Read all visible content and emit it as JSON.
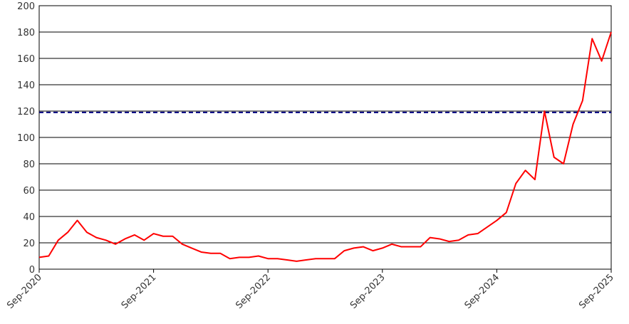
{
  "chart_data": {
    "type": "line",
    "x": [
      "2020-09",
      "2020-10",
      "2020-11",
      "2020-12",
      "2021-01",
      "2021-02",
      "2021-03",
      "2021-04",
      "2021-05",
      "2021-06",
      "2021-07",
      "2021-08",
      "2021-09",
      "2021-10",
      "2021-11",
      "2021-12",
      "2022-01",
      "2022-02",
      "2022-03",
      "2022-04",
      "2022-05",
      "2022-06",
      "2022-07",
      "2022-08",
      "2022-09",
      "2022-10",
      "2022-11",
      "2022-12",
      "2023-01",
      "2023-02",
      "2023-03",
      "2023-04",
      "2023-05",
      "2023-06",
      "2023-07",
      "2023-08",
      "2023-09",
      "2023-10",
      "2023-11",
      "2023-12",
      "2024-01",
      "2024-02",
      "2024-03",
      "2024-04",
      "2024-05",
      "2024-06",
      "2024-07",
      "2024-08",
      "2024-09",
      "2024-10",
      "2024-11",
      "2024-12",
      "2025-01",
      "2025-02",
      "2025-03",
      "2025-04",
      "2025-05",
      "2025-06",
      "2025-07",
      "2025-08",
      "2025-09"
    ],
    "series": [
      {
        "color": "#ff0000",
        "values": [
          9,
          10,
          22,
          28,
          37,
          28,
          24,
          22,
          19,
          23,
          26,
          22,
          27,
          25,
          25,
          19,
          16,
          13,
          12,
          12,
          8,
          9,
          9,
          10,
          8,
          8,
          7,
          6,
          7,
          8,
          8,
          8,
          14,
          16,
          17,
          14,
          16,
          19,
          17,
          17,
          17,
          24,
          23,
          21,
          22,
          26,
          27,
          32,
          37,
          43,
          65,
          75,
          68,
          120,
          85,
          80,
          110,
          128,
          175,
          158,
          180
        ]
      }
    ],
    "reference_line": {
      "value": 119,
      "color": "#000080",
      "dashed": true
    },
    "xlim": [
      "2020-09",
      "2025-09"
    ],
    "xticks": [
      {
        "value": "2020-09",
        "label": "Sep-2020"
      },
      {
        "value": "2021-09",
        "label": "Sep-2021"
      },
      {
        "value": "2022-09",
        "label": "Sep-2022"
      },
      {
        "value": "2023-09",
        "label": "Sep-2023"
      },
      {
        "value": "2024-09",
        "label": "Sep-2024"
      },
      {
        "value": "2025-09",
        "label": "Sep-2025"
      }
    ],
    "ylim": [
      0,
      200
    ],
    "yticks": [
      0,
      20,
      40,
      60,
      80,
      100,
      120,
      140,
      160,
      180,
      200
    ],
    "grid": true
  }
}
